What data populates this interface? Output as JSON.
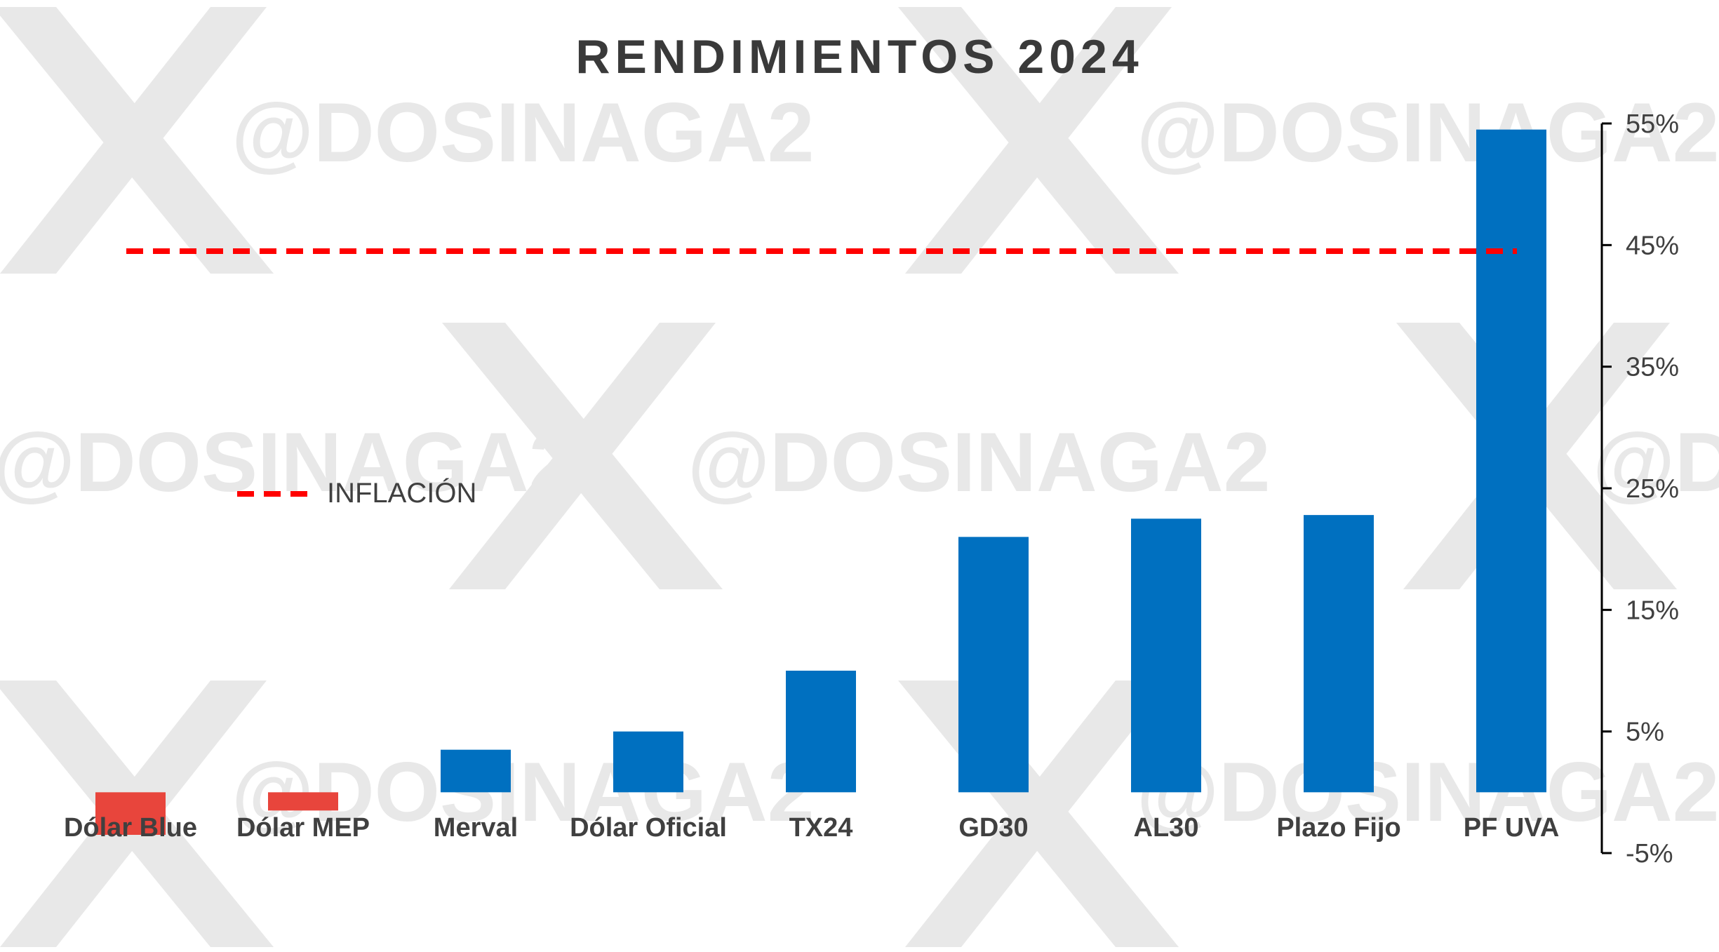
{
  "chart_data": {
    "type": "bar",
    "title": "RENDIMIENTOS 2024",
    "categories": [
      "Dólar Blue",
      "Dólar MEP",
      "Merval",
      "Dólar Oficial",
      "TX24",
      "GD30",
      "AL30",
      "Plazo Fijo",
      "PF UVA"
    ],
    "values": [
      -3.5,
      -1.5,
      3.5,
      5,
      10,
      21,
      22.5,
      22.8,
      54.5
    ],
    "bar_colors": [
      "#e8453c",
      "#e8453c",
      "#0070c0",
      "#0070c0",
      "#0070c0",
      "#0070c0",
      "#0070c0",
      "#0070c0",
      "#0070c0"
    ],
    "reference_line": {
      "name": "INFLACIÓN",
      "value": 44.5,
      "color": "#ff0000",
      "style": "dashed"
    },
    "yaxis_position": "right",
    "ylim": [
      -5,
      55
    ],
    "yticks": [
      -5,
      5,
      15,
      25,
      35,
      45,
      55
    ],
    "ytick_labels": [
      "-5%",
      "5%",
      "15%",
      "25%",
      "35%",
      "45%",
      "55%"
    ],
    "legend": {
      "placement": "left-middle",
      "entries": [
        "INFLACIÓN"
      ]
    },
    "grid": false,
    "watermark": "@DOSINAGA2"
  }
}
